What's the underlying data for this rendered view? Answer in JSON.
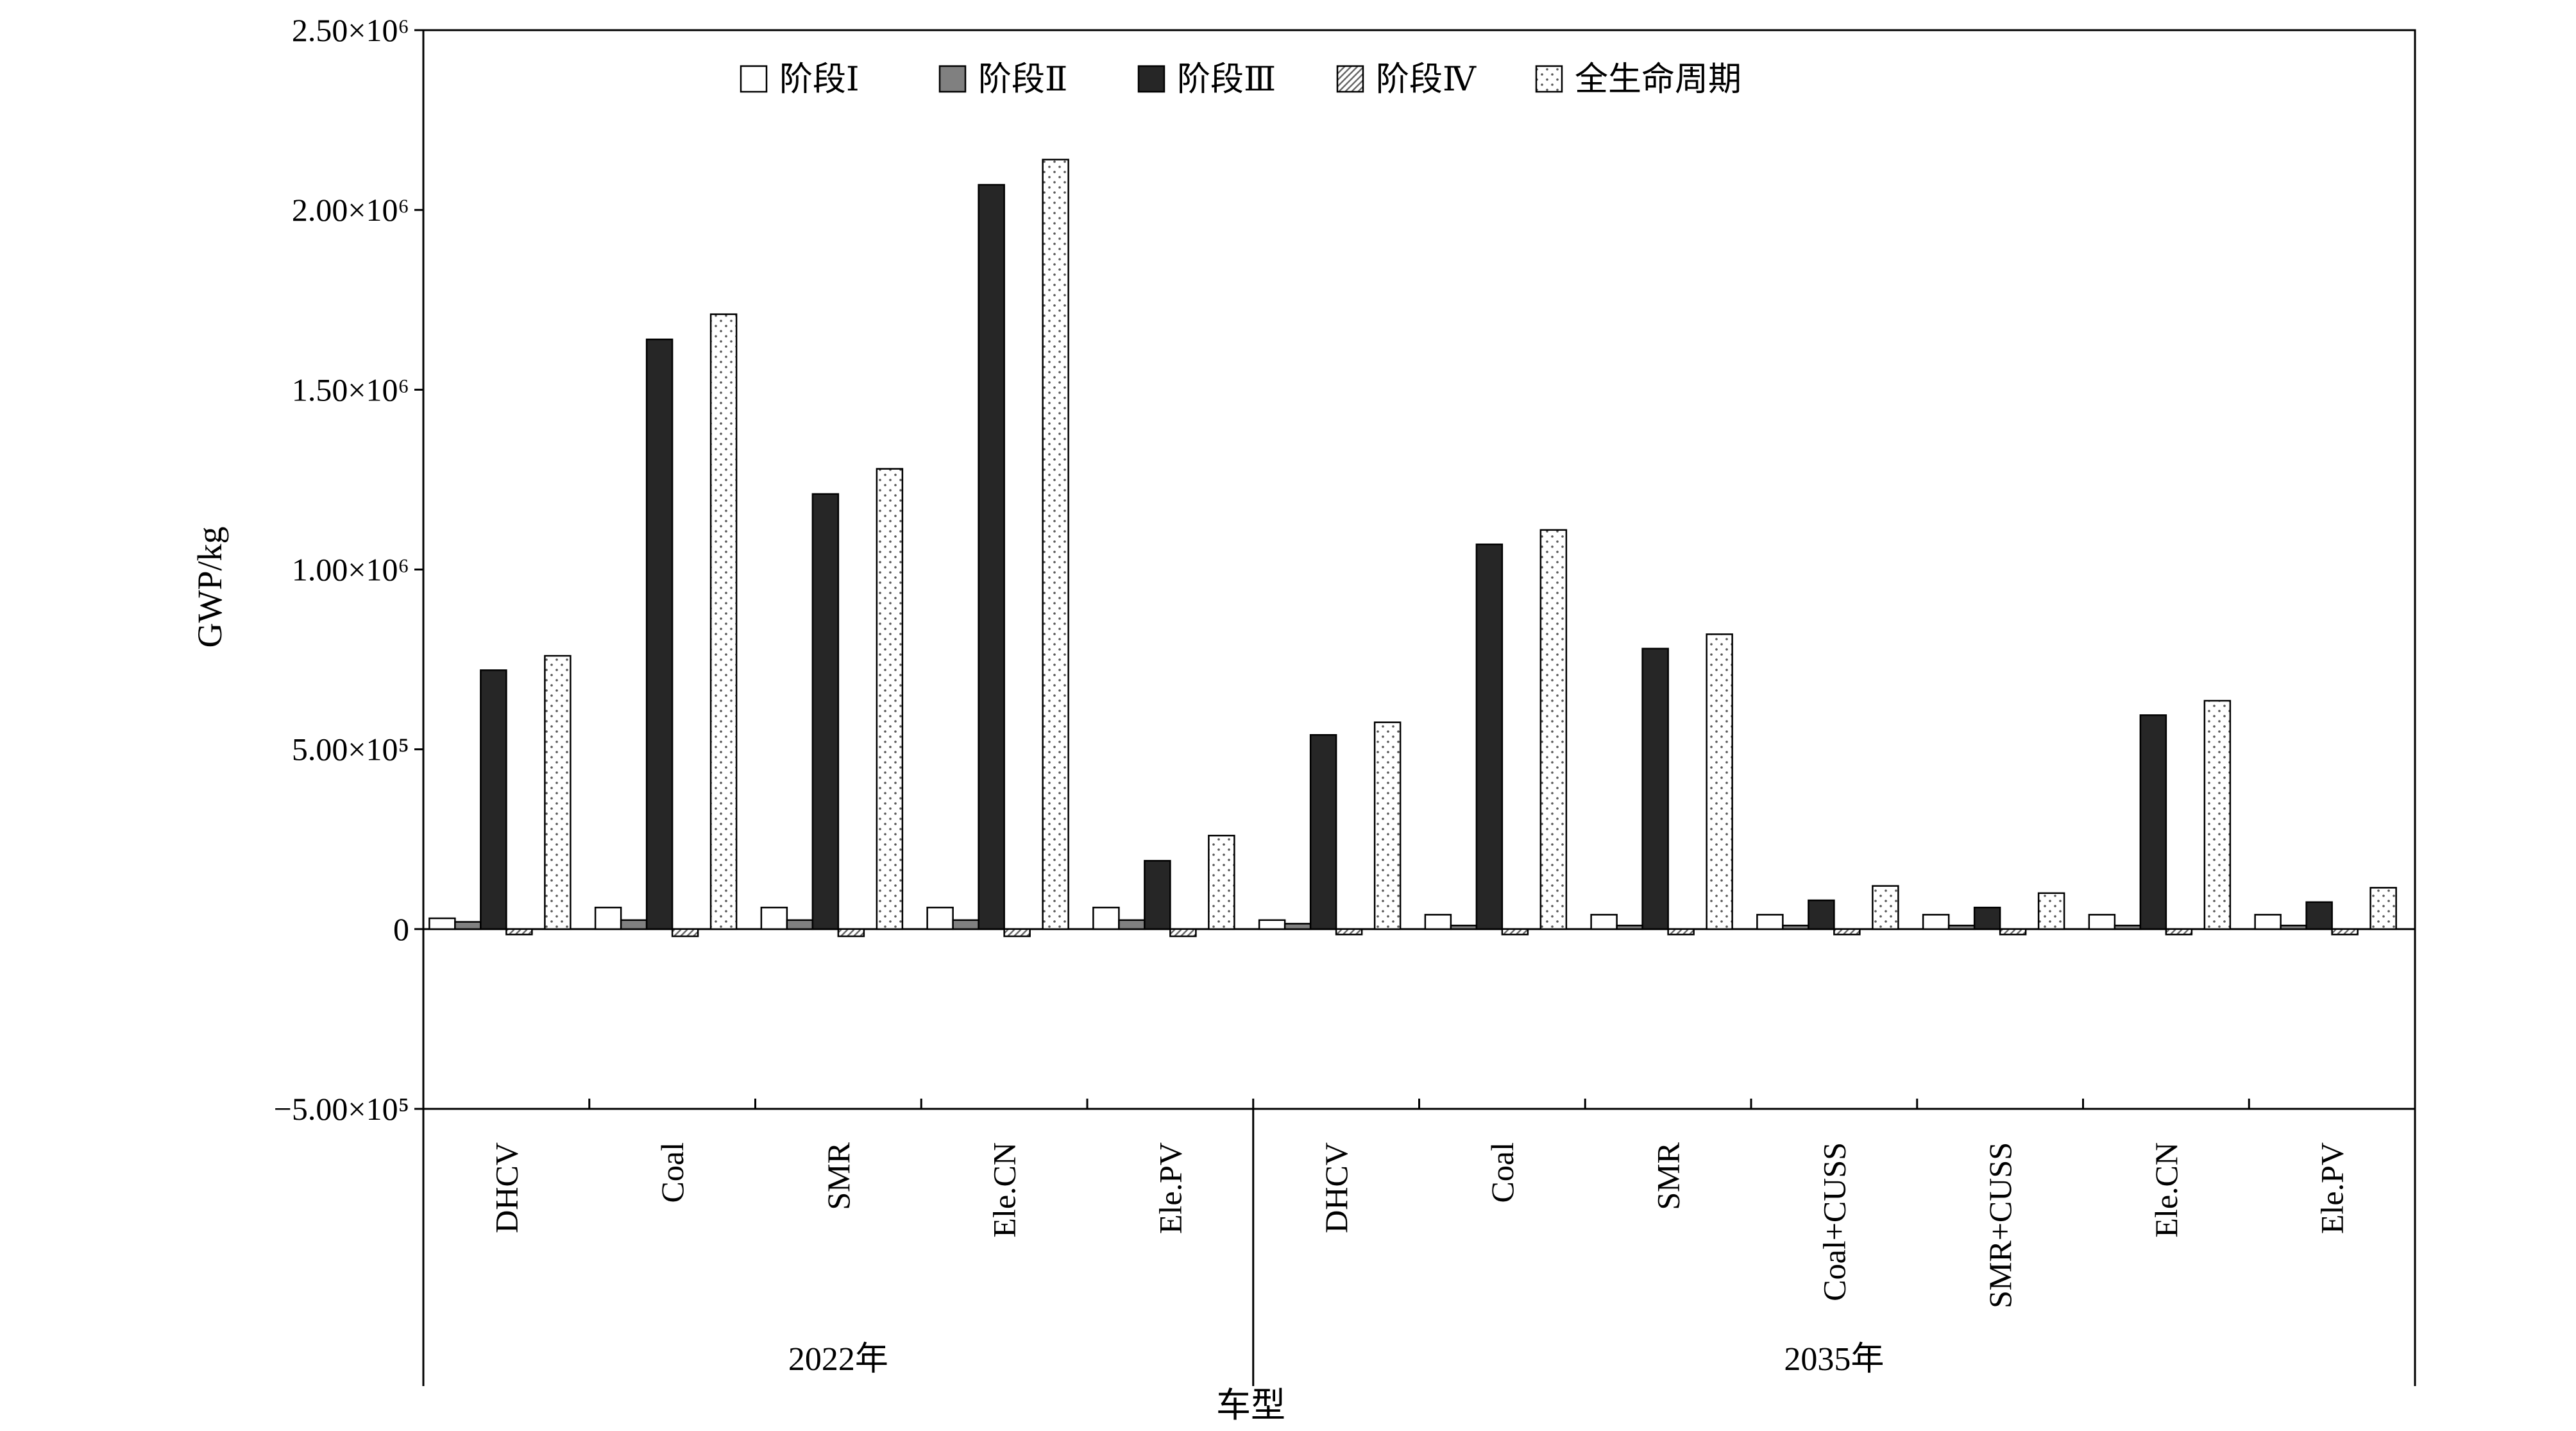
{
  "chart_data": {
    "type": "bar",
    "xlabel": "车型",
    "ylabel": "GWP/kg",
    "ylim": [
      -500000,
      2500000
    ],
    "yticks": [
      {
        "value": 2500000,
        "label": "2.50×10⁶"
      },
      {
        "value": 2000000,
        "label": "2.00×10⁶"
      },
      {
        "value": 1500000,
        "label": "1.50×10⁶"
      },
      {
        "value": 1000000,
        "label": "1.00×10⁶"
      },
      {
        "value": 500000,
        "label": "5.00×10⁵"
      },
      {
        "value": 0,
        "label": "0"
      },
      {
        "value": -500000,
        "label": "−5.00×10⁵"
      }
    ],
    "grid": false,
    "legend_position": "top",
    "groups": [
      {
        "label": "2022年",
        "count": 5
      },
      {
        "label": "2035年",
        "count": 7
      }
    ],
    "categories": [
      "DHCV",
      "Coal",
      "SMR",
      "Ele.CN",
      "Ele.PV",
      "DHCV",
      "Coal",
      "SMR",
      "Coal+CUSS",
      "SMR+CUSS",
      "Ele.CN",
      "Ele.PV"
    ],
    "series": [
      {
        "name": "阶段Ⅰ",
        "pattern": "white",
        "values": [
          30000,
          60000,
          60000,
          60000,
          60000,
          25000,
          40000,
          40000,
          40000,
          40000,
          40000,
          40000
        ]
      },
      {
        "name": "阶段Ⅱ",
        "pattern": "gray",
        "values": [
          20000,
          25000,
          25000,
          25000,
          25000,
          15000,
          10000,
          10000,
          10000,
          10000,
          10000,
          10000
        ]
      },
      {
        "name": "阶段Ⅲ",
        "pattern": "black",
        "values": [
          720000,
          1640000,
          1210000,
          2070000,
          190000,
          540000,
          1070000,
          780000,
          80000,
          60000,
          595000,
          75000
        ]
      },
      {
        "name": "阶段Ⅳ",
        "pattern": "hatch",
        "values": [
          -15000,
          -20000,
          -20000,
          -20000,
          -20000,
          -15000,
          -15000,
          -15000,
          -15000,
          -15000,
          -15000,
          -15000
        ]
      },
      {
        "name": "全生命周期",
        "pattern": "dots",
        "values": [
          760000,
          1710000,
          1280000,
          2140000,
          260000,
          575000,
          1110000,
          820000,
          120000,
          100000,
          635000,
          115000
        ]
      }
    ]
  }
}
